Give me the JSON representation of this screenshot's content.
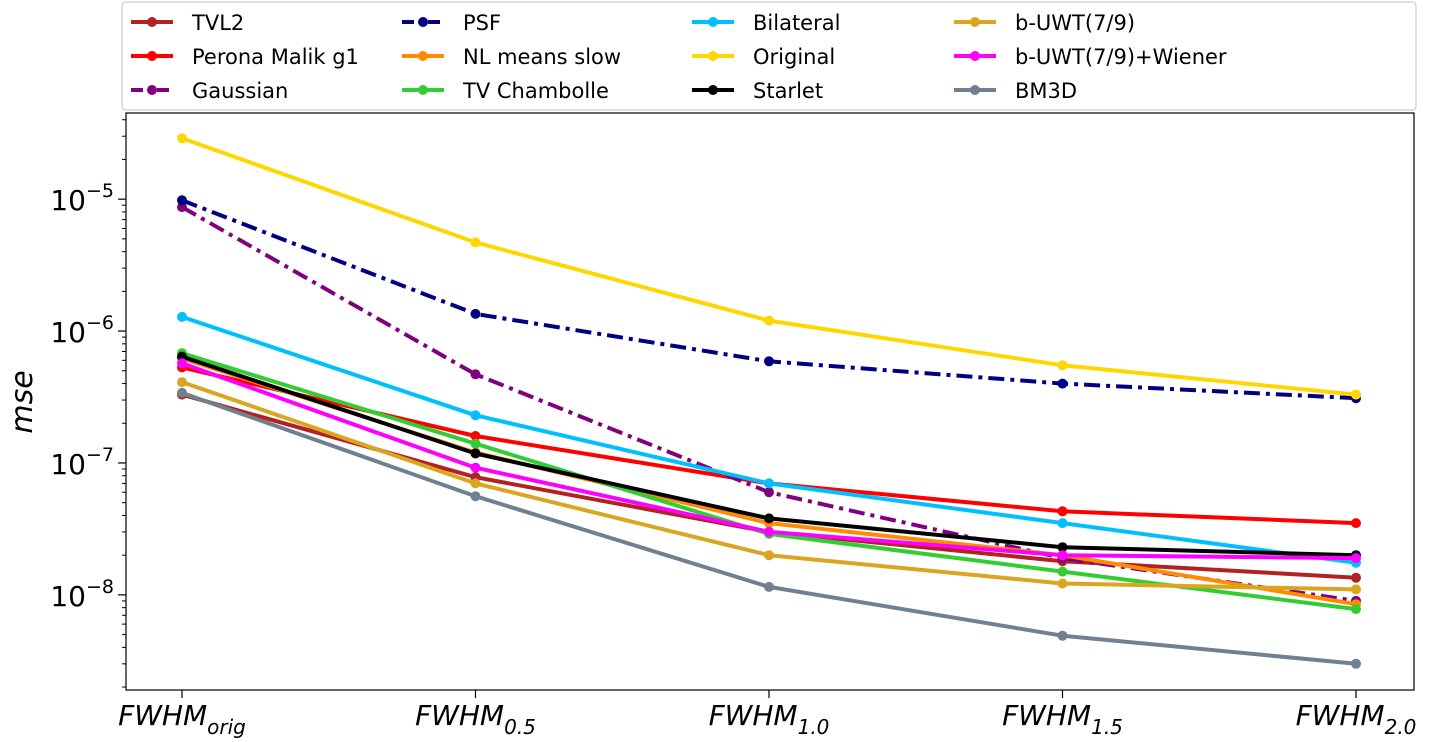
{
  "chart_data": {
    "type": "line",
    "title": "",
    "ylabel": "mse",
    "yscale": "log",
    "ylim": [
      1.9e-09,
      4.5e-05
    ],
    "y_ticks": [
      {
        "value": 1e-08,
        "mantissa": "10",
        "exponent": "−8"
      },
      {
        "value": 1e-07,
        "mantissa": "10",
        "exponent": "−7"
      },
      {
        "value": 1e-06,
        "mantissa": "10",
        "exponent": "−6"
      },
      {
        "value": 1e-05,
        "mantissa": "10",
        "exponent": "−5"
      }
    ],
    "categories": [
      {
        "base": "FWHM",
        "sub": "orig"
      },
      {
        "base": "FWHM",
        "sub": "0.5"
      },
      {
        "base": "FWHM",
        "sub": "1.0"
      },
      {
        "base": "FWHM",
        "sub": "1.5"
      },
      {
        "base": "FWHM",
        "sub": "2.0"
      }
    ],
    "grid": false,
    "legend_position": "top",
    "series": [
      {
        "name": "TVL2",
        "color": "#b22222",
        "dash": "solid",
        "values": [
          3.3e-07,
          7.8e-08,
          3e-08,
          1.8e-08,
          1.35e-08
        ]
      },
      {
        "name": "Perona Malik g1",
        "color": "#ff0000",
        "dash": "solid",
        "values": [
          5.3e-07,
          1.6e-07,
          7e-08,
          4.3e-08,
          3.5e-08
        ]
      },
      {
        "name": "Gaussian",
        "color": "#800080",
        "dash": "dashdot",
        "values": [
          8.7e-06,
          4.7e-07,
          6e-08,
          1.9e-08,
          9e-09
        ]
      },
      {
        "name": "PSF",
        "color": "#000080",
        "dash": "dashdot",
        "values": [
          9.8e-06,
          1.35e-06,
          5.9e-07,
          4e-07,
          3.1e-07
        ]
      },
      {
        "name": "NL means slow",
        "color": "#ff8c00",
        "dash": "solid",
        "values": [
          6.2e-07,
          1.2e-07,
          3.5e-08,
          2e-08,
          8.5e-09
        ]
      },
      {
        "name": "TV Chambolle",
        "color": "#32cd32",
        "dash": "solid",
        "values": [
          6.8e-07,
          1.4e-07,
          2.9e-08,
          1.5e-08,
          7.8e-09
        ]
      },
      {
        "name": "Bilateral",
        "color": "#00bfff",
        "dash": "solid",
        "values": [
          1.28e-06,
          2.3e-07,
          7e-08,
          3.5e-08,
          1.75e-08
        ]
      },
      {
        "name": "Original",
        "color": "#ffd700",
        "dash": "solid",
        "values": [
          2.9e-05,
          4.7e-06,
          1.2e-06,
          5.5e-07,
          3.3e-07
        ]
      },
      {
        "name": "Starlet",
        "color": "#000000",
        "dash": "solid",
        "values": [
          6.4e-07,
          1.18e-07,
          3.8e-08,
          2.3e-08,
          2e-08
        ]
      },
      {
        "name": "b-UWT(7/9)",
        "color": "#daa520",
        "dash": "solid",
        "values": [
          4.1e-07,
          7e-08,
          2e-08,
          1.22e-08,
          1.1e-08
        ]
      },
      {
        "name": "b-UWT(7/9)+Wiener",
        "color": "#ff00ff",
        "dash": "solid",
        "values": [
          5.7e-07,
          9.2e-08,
          3e-08,
          2e-08,
          1.9e-08
        ]
      },
      {
        "name": "BM3D",
        "color": "#708090",
        "dash": "solid",
        "values": [
          3.4e-07,
          5.6e-08,
          1.15e-08,
          4.9e-09,
          3e-09
        ]
      }
    ]
  }
}
